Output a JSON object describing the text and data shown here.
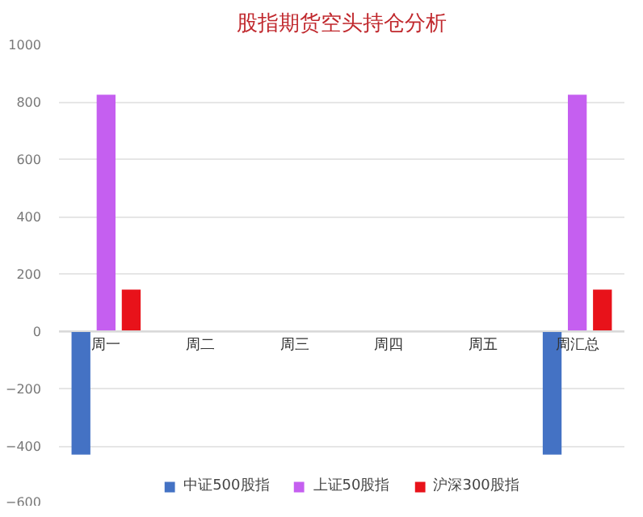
{
  "chart_data": {
    "type": "bar",
    "title": "股指期货空头持仓分析",
    "categories": [
      "周一",
      "周二",
      "周三",
      "周四",
      "周五",
      "周汇总"
    ],
    "series": [
      {
        "name": "中证500股指",
        "color": "#4472c4",
        "values": [
          -430,
          null,
          null,
          null,
          null,
          -430
        ]
      },
      {
        "name": "上证50股指",
        "color": "#c55ff0",
        "values": [
          825,
          null,
          null,
          null,
          null,
          825
        ]
      },
      {
        "name": "沪深300股指",
        "color": "#e8121a",
        "values": [
          145,
          null,
          null,
          null,
          null,
          145
        ]
      }
    ],
    "ylim": [
      -600,
      1000
    ],
    "yticks": [
      -600,
      -400,
      -200,
      0,
      200,
      400,
      600,
      800,
      1000
    ],
    "grid": "y",
    "legend": "bottom"
  }
}
